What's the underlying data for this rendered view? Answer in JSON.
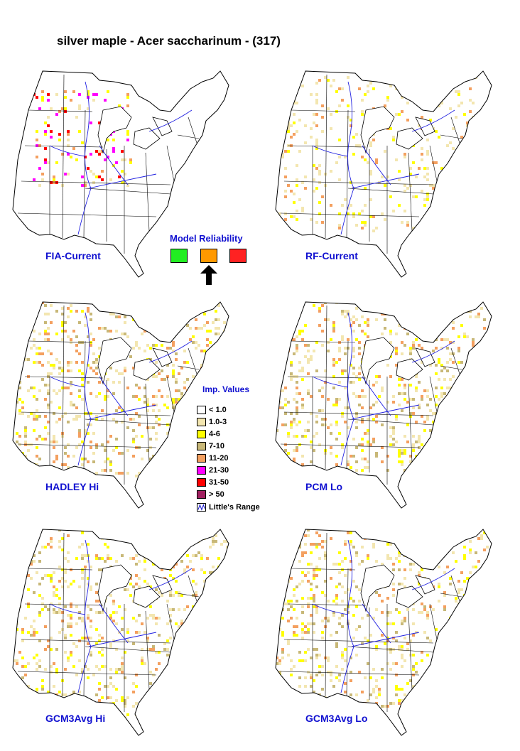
{
  "title": "silver maple - Acer saccharinum - (317)",
  "maps": [
    {
      "label": "FIA-Current",
      "pattern": "fia"
    },
    {
      "label": "RF-Current",
      "pattern": "rf"
    },
    {
      "label": "HADLEY Hi",
      "pattern": "hadley"
    },
    {
      "label": "PCM Lo",
      "pattern": "pcm"
    },
    {
      "label": "GCM3Avg Hi",
      "pattern": "gcmhi"
    },
    {
      "label": "GCM3Avg Lo",
      "pattern": "gcmlo"
    }
  ],
  "reliability": {
    "title": "Model Reliability",
    "levels": [
      {
        "color": "#22ee22"
      },
      {
        "color": "#ff9900",
        "selected": true
      },
      {
        "color": "#ff2222"
      }
    ]
  },
  "legend": {
    "title": "Imp. Values",
    "items": [
      {
        "label": "< 1.0",
        "color": "#ffffff"
      },
      {
        "label": "1.0-3",
        "color": "#f3e6b0"
      },
      {
        "label": "4-6",
        "color": "#ffff00"
      },
      {
        "label": "7-10",
        "color": "#c8b878"
      },
      {
        "label": "11-20",
        "color": "#f4a060"
      },
      {
        "label": "21-30",
        "color": "#ff00ff"
      },
      {
        "label": "31-50",
        "color": "#ff0000"
      },
      {
        "label": "> 50",
        "color": "#a02060"
      }
    ],
    "range_label": "Little's Range"
  }
}
